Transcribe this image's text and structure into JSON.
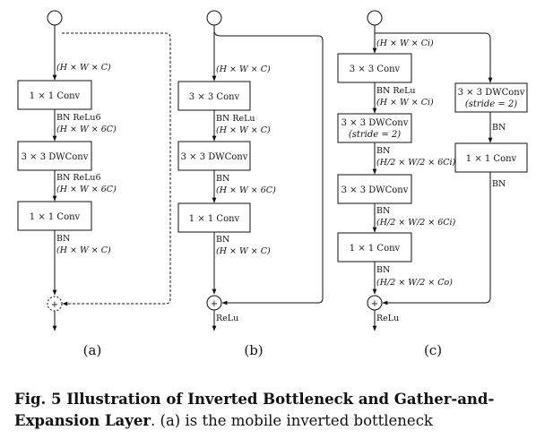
{
  "panels": {
    "a": {
      "label": "(a)",
      "boxes": [
        "1 × 1 Conv",
        "3 × 3 DWConv",
        "1 × 1 Conv"
      ],
      "edges": {
        "e0": "(H × W × C)",
        "e1_bn": "BN  ReLu6",
        "e1_dim": "(H × W × 6C)",
        "e2_bn": "BN  ReLu6",
        "e2_dim": "(H × W × 6C)",
        "e3_bn": "BN",
        "e3_dim": "(H × W × C)"
      },
      "add": "+"
    },
    "b": {
      "label": "(b)",
      "boxes": [
        "3 × 3 Conv",
        "3 × 3 DWConv",
        "1 × 1 Conv"
      ],
      "edges": {
        "e0": "(H × W × C)",
        "e1_bn": "BN  ReLu",
        "e1_dim": "(H × W × C)",
        "e2_bn": "BN",
        "e2_dim": "(H × W × 6C)",
        "e3_bn": "BN",
        "e3_dim": "(H × W × C)"
      },
      "add": "+",
      "out": "ReLu"
    },
    "c": {
      "label": "(c)",
      "boxes": [
        "3 × 3 Conv",
        "3 × 3 DWConv",
        "(stride = 2)",
        "3 × 3 DWConv",
        "1 × 1 Conv"
      ],
      "side_boxes": [
        "3 × 3 DWConv",
        "(stride = 2)",
        "1 × 1 Conv"
      ],
      "edges": {
        "e0": "(H × W × Ci)",
        "e1_bn": "BN  ReLu",
        "e1_dim": "(H × W × Ci)",
        "e2_bn": "BN",
        "e2_dim": "(H/2 × W/2 × 6Ci)",
        "e3_bn": "BN",
        "e3_dim": "(H/2 × W/2 × 6Ci)",
        "e4_bn": "BN",
        "e4_dim": "(H/2 × W/2 × Co)",
        "side_bn1": "BN",
        "side_bn2": "BN"
      },
      "add": "+",
      "out": "ReLu"
    }
  },
  "caption": {
    "bold": "Fig. 5 Illustration of Inverted Bottleneck and Gather-and-Expansion Layer",
    "rest": ". (a) is the mobile inverted bottleneck"
  }
}
